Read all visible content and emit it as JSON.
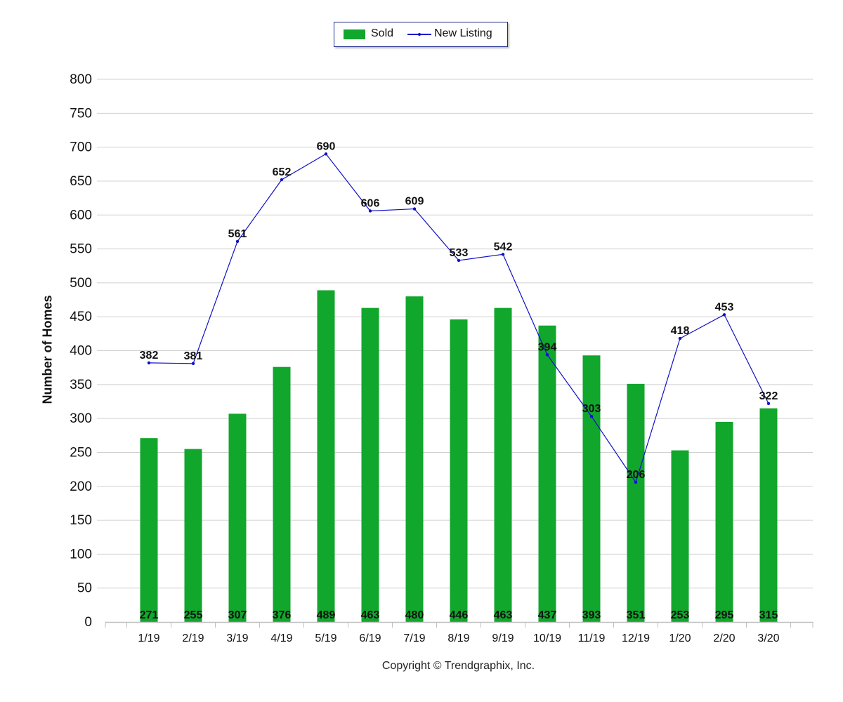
{
  "colors": {
    "sold": "#11a62c",
    "new_listing": "#1010c8",
    "grid": "#d0d0d0",
    "axis": "#bfbfbf"
  },
  "legend": {
    "sold_label": "Sold",
    "new_listing_label": "New Listing",
    "placement": "top-center"
  },
  "footer": {
    "copyright": "Copyright © Trendgraphix, Inc."
  },
  "chart_data": {
    "type": "bar",
    "title": "",
    "xlabel": "",
    "ylabel": "Number of Homes",
    "ylim": [
      0,
      800
    ],
    "yticks": [
      0,
      50,
      100,
      150,
      200,
      250,
      300,
      350,
      400,
      450,
      500,
      550,
      600,
      650,
      700,
      750,
      800
    ],
    "grid": true,
    "categories": [
      "1/19",
      "2/19",
      "3/19",
      "4/19",
      "5/19",
      "6/19",
      "7/19",
      "8/19",
      "9/19",
      "10/19",
      "11/19",
      "12/19",
      "1/20",
      "2/20",
      "3/20"
    ],
    "series": [
      {
        "name": "Sold",
        "type": "bar",
        "values": [
          271,
          255,
          307,
          376,
          489,
          463,
          480,
          446,
          463,
          437,
          393,
          351,
          253,
          295,
          315
        ]
      },
      {
        "name": "New Listing",
        "type": "line",
        "values": [
          382,
          381,
          561,
          652,
          690,
          606,
          609,
          533,
          542,
          394,
          303,
          206,
          418,
          453,
          322
        ]
      }
    ]
  }
}
